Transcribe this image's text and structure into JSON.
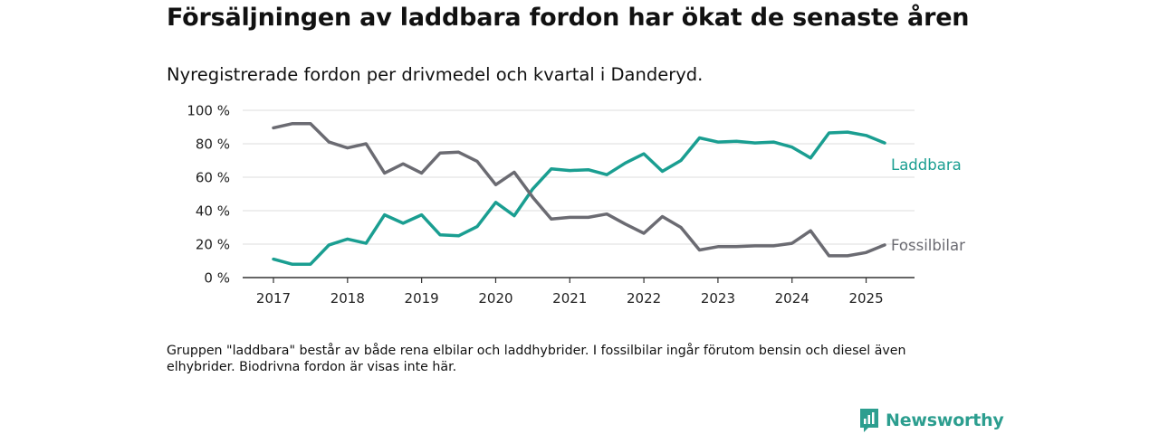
{
  "title": "Försäljningen av laddbara fordon har ökat de senaste åren",
  "subtitle": "Nyregistrerade fordon per drivmedel och kvartal i Danderyd.",
  "note": "Gruppen \"laddbara\" består av både rena elbilar och laddhybrider. I fossilbilar ingår förutom bensin och diesel även elhybrider. Biodrivna fordon är visas inte här.",
  "brand": {
    "name": "Newsworthy",
    "icon": "newsworthy-logo-icon",
    "color": "#2c9e8f"
  },
  "chart_data": {
    "type": "line",
    "title": "",
    "xlabel": "",
    "ylabel": "",
    "ylim": [
      0,
      100
    ],
    "yticks": [
      0,
      20,
      40,
      60,
      80,
      100
    ],
    "ytick_labels": [
      "0 %",
      "20 %",
      "40 %",
      "60 %",
      "80 %",
      "100 %"
    ],
    "xlim": [
      2016.95,
      2025.85
    ],
    "xticks": [
      2017,
      2018,
      2019,
      2020,
      2021,
      2022,
      2023,
      2024,
      2025
    ],
    "xtick_labels": [
      "2017",
      "2018",
      "2019",
      "2020",
      "2021",
      "2022",
      "2023",
      "2024",
      "2025"
    ],
    "grid": "horizontal",
    "x": [
      "2017 Q1",
      "2017 Q2",
      "2017 Q3",
      "2017 Q4",
      "2018 Q1",
      "2018 Q2",
      "2018 Q3",
      "2018 Q4",
      "2019 Q1",
      "2019 Q2",
      "2019 Q3",
      "2019 Q4",
      "2020 Q1",
      "2020 Q2",
      "2020 Q3",
      "2020 Q4",
      "2021 Q1",
      "2021 Q2",
      "2021 Q3",
      "2021 Q4",
      "2022 Q1",
      "2022 Q2",
      "2022 Q3",
      "2022 Q4",
      "2023 Q1",
      "2023 Q2",
      "2023 Q3",
      "2023 Q4",
      "2024 Q1",
      "2024 Q2",
      "2024 Q3",
      "2024 Q4",
      "2025 Q1",
      "2025 Q2"
    ],
    "series": [
      {
        "name": "Laddbara",
        "color": "#1a9e91",
        "values": [
          11,
          8,
          8,
          19.5,
          23,
          20.5,
          37.5,
          32.5,
          37.5,
          25.5,
          25,
          30.5,
          45,
          37,
          53,
          65,
          64,
          64.5,
          61.5,
          68.5,
          74,
          63.5,
          70,
          83.5,
          81,
          81.5,
          80.5,
          81,
          78,
          71.5,
          86.5,
          87,
          85,
          80.5
        ]
      },
      {
        "name": "Fossilbilar",
        "color": "#6b6b72",
        "values": [
          89.5,
          92,
          92,
          81,
          77.5,
          80,
          62.5,
          68,
          62.5,
          74.5,
          75,
          69.5,
          55.5,
          63,
          48,
          35,
          36,
          36,
          38,
          32,
          26.5,
          36.5,
          30,
          16.5,
          18.5,
          18.5,
          19,
          19,
          20.5,
          28,
          13,
          13,
          15,
          19.5
        ]
      }
    ]
  }
}
